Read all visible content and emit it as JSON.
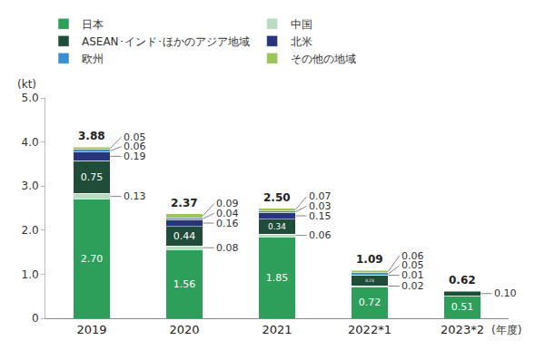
{
  "chart_data": {
    "type": "bar",
    "stacked": true,
    "data_labels": true,
    "grid": false,
    "legend": "top",
    "y_label": "(kt)",
    "x_label": "(年度)",
    "categories": [
      "2019",
      "2020",
      "2021",
      "2022*1",
      "2023*2"
    ],
    "ylim": [
      0,
      5
    ],
    "yticks": [
      0,
      {
        "value": 1,
        "label": "1.0"
      },
      {
        "value": 2,
        "label": "2.0"
      },
      {
        "value": 3,
        "label": "3.0"
      },
      {
        "value": 4,
        "label": "4.0"
      },
      {
        "value": 5,
        "label": "5.0"
      }
    ],
    "series": [
      {
        "name": "日本",
        "color": "#2e9e5b",
        "values": [
          2.7,
          1.56,
          1.85,
          0.72,
          0.51
        ],
        "value_labels": [
          "2.70",
          "1.56",
          "1.85",
          "0.72",
          "0.51"
        ]
      },
      {
        "name": "中国",
        "color": "#b9dcc0",
        "values": [
          0.13,
          0.08,
          0.06,
          0.02,
          null
        ],
        "value_labels": [
          "0.13",
          "0.08",
          "0.06",
          "0.02",
          null
        ]
      },
      {
        "name": "ASEAN･インド･ほかのアジア地域",
        "color": "#1f4d3a",
        "values": [
          0.75,
          0.44,
          0.34,
          0.23,
          0.1
        ],
        "value_labels": [
          "0.75",
          "0.44",
          "0.34",
          "0.23",
          "0.10"
        ]
      },
      {
        "name": "北米",
        "color": "#27357a",
        "values": [
          0.19,
          0.16,
          0.15,
          0.01,
          null
        ],
        "value_labels": [
          "0.19",
          "0.16",
          "0.15",
          "0.01",
          null
        ]
      },
      {
        "name": "欧州",
        "color": "#3b8fcf",
        "values": [
          0.06,
          0.04,
          0.03,
          0.05,
          null
        ],
        "value_labels": [
          "0.06",
          "0.04",
          "0.03",
          "0.05",
          null
        ]
      },
      {
        "name": "その他の地域",
        "color": "#9bc55a",
        "values": [
          0.05,
          0.09,
          0.07,
          0.06,
          null
        ],
        "value_labels": [
          "0.05",
          "0.09",
          "0.07",
          "0.06",
          null
        ]
      }
    ],
    "totals": {
      "values": [
        3.88,
        2.37,
        2.5,
        1.09,
        0.62
      ],
      "value_labels": [
        "3.88",
        "2.37",
        "2.50",
        "1.09",
        "0.62"
      ]
    }
  }
}
